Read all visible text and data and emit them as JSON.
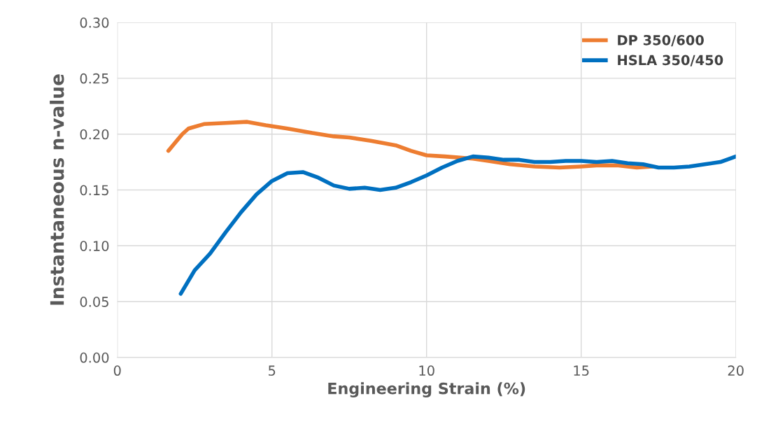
{
  "chart_data": {
    "type": "line",
    "xlabel": "Engineering Strain (%)",
    "ylabel": "Instantaneous n-value",
    "xlim": [
      0,
      20
    ],
    "xticks": [
      0,
      5,
      10,
      15,
      20
    ],
    "ylim": [
      0,
      0.3
    ],
    "yticks": [
      {
        "value": 0,
        "label": "0.00"
      },
      {
        "value": 0.05,
        "label": "0.05"
      },
      {
        "value": 0.1,
        "label": "0.10"
      },
      {
        "value": 0.15,
        "label": "0.15"
      },
      {
        "value": 0.2,
        "label": "0.20"
      },
      {
        "value": 0.25,
        "label": "0.25"
      },
      {
        "value": 0.3,
        "label": "0.30"
      }
    ],
    "grid": true,
    "legend": "top right",
    "marker": "none",
    "line_style": "solid",
    "series": [
      {
        "name": "DP 350/600",
        "color": "#ed7d31",
        "x": [
          1.65,
          2.1,
          2.3,
          2.8,
          3.5,
          4.2,
          4.8,
          5.5,
          6.3,
          7.0,
          7.5,
          8.2,
          9.0,
          9.5,
          10.0,
          10.6,
          11.5,
          12.0,
          12.7,
          13.5,
          14.3,
          15.0,
          15.5,
          16.2,
          16.8,
          17.3
        ],
        "values": [
          0.185,
          0.2,
          0.205,
          0.209,
          0.21,
          0.211,
          0.208,
          0.205,
          0.201,
          0.198,
          0.197,
          0.194,
          0.19,
          0.185,
          0.181,
          0.18,
          0.178,
          0.176,
          0.173,
          0.171,
          0.17,
          0.171,
          0.172,
          0.172,
          0.17,
          0.171
        ]
      },
      {
        "name": "HSLA 350/450",
        "color": "#0070c0",
        "x": [
          2.05,
          2.5,
          3.0,
          3.5,
          4.0,
          4.5,
          5.0,
          5.5,
          6.0,
          6.5,
          7.0,
          7.5,
          8.0,
          8.5,
          9.0,
          9.5,
          10.0,
          10.5,
          11.0,
          11.5,
          12.0,
          12.5,
          13.0,
          13.5,
          14.0,
          14.5,
          15.0,
          15.5,
          16.0,
          16.5,
          17.0,
          17.5,
          18.0,
          18.5,
          19.0,
          19.5,
          20.0
        ],
        "values": [
          0.057,
          0.078,
          0.093,
          0.112,
          0.13,
          0.146,
          0.158,
          0.165,
          0.166,
          0.161,
          0.154,
          0.151,
          0.152,
          0.15,
          0.152,
          0.157,
          0.163,
          0.17,
          0.176,
          0.18,
          0.179,
          0.177,
          0.177,
          0.175,
          0.175,
          0.176,
          0.176,
          0.175,
          0.176,
          0.174,
          0.173,
          0.17,
          0.17,
          0.171,
          0.173,
          0.175,
          0.18
        ]
      }
    ]
  }
}
